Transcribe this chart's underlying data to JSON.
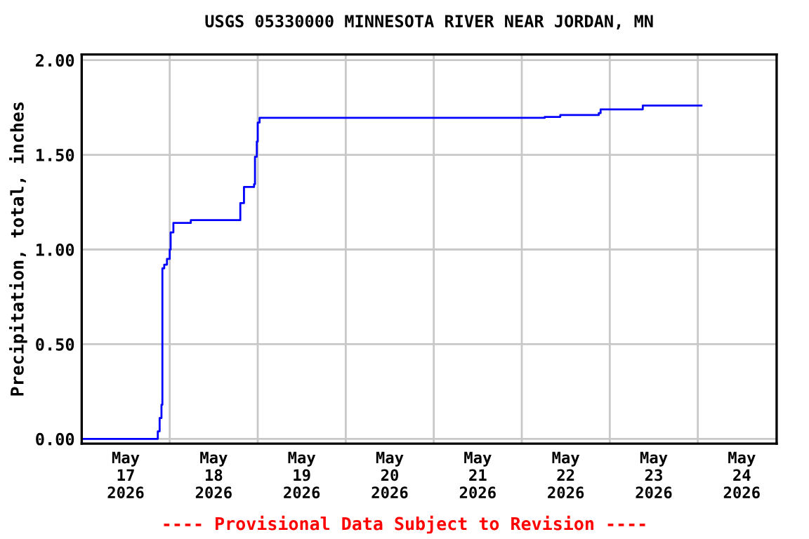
{
  "chart_data": {
    "type": "step",
    "title": "USGS 05330000 MINNESOTA RIVER NEAR JORDAN, MN",
    "ylabel": "Precipitation, total, inches",
    "annotations": [
      "---- Provisional Data Subject to Revision ----"
    ],
    "series": [
      {
        "color": "#0000ff",
        "x": [
          "2026-05-17T00:00",
          "2026-05-17T20:45",
          "2026-05-17T21:15",
          "2026-05-17T21:45",
          "2026-05-17T22:00",
          "2026-05-17T22:30",
          "2026-05-17T23:15",
          "2026-05-18T00:00",
          "2026-05-18T00:15",
          "2026-05-18T01:00",
          "2026-05-18T05:45",
          "2026-05-18T19:15",
          "2026-05-18T20:15",
          "2026-05-18T23:00",
          "2026-05-18T23:15",
          "2026-05-18T23:45",
          "2026-05-19T00:00",
          "2026-05-19T00:30",
          "2026-05-22T06:15",
          "2026-05-22T10:30",
          "2026-05-22T21:00",
          "2026-05-22T21:30",
          "2026-05-23T09:00",
          "2026-05-24T01:00"
        ],
        "values": [
          0.0,
          0.04,
          0.11,
          0.18,
          0.9,
          0.92,
          0.95,
          1.0,
          1.09,
          1.14,
          1.155,
          1.245,
          1.33,
          1.345,
          1.49,
          1.57,
          1.67,
          1.695,
          1.7,
          1.71,
          1.72,
          1.74,
          1.76,
          1.76
        ]
      }
    ],
    "xlim": [
      "2026-05-17T00:00",
      "2026-05-24T21:30"
    ],
    "xticks": [
      {
        "value": "2026-05-17T12:00",
        "label": "May\n17\n2026"
      },
      {
        "value": "2026-05-18T00:00",
        "label": null
      },
      {
        "value": "2026-05-18T12:00",
        "label": "May\n18\n2026"
      },
      {
        "value": "2026-05-19T00:00",
        "label": null
      },
      {
        "value": "2026-05-19T12:00",
        "label": "May\n19\n2026"
      },
      {
        "value": "2026-05-20T00:00",
        "label": null
      },
      {
        "value": "2026-05-20T12:00",
        "label": "May\n20\n2026"
      },
      {
        "value": "2026-05-21T00:00",
        "label": null
      },
      {
        "value": "2026-05-21T12:00",
        "label": "May\n21\n2026"
      },
      {
        "value": "2026-05-22T00:00",
        "label": null
      },
      {
        "value": "2026-05-22T12:00",
        "label": "May\n22\n2026"
      },
      {
        "value": "2026-05-23T00:00",
        "label": null
      },
      {
        "value": "2026-05-23T12:00",
        "label": "May\n23\n2026"
      },
      {
        "value": "2026-05-24T00:00",
        "label": null
      },
      {
        "value": "2026-05-24T12:00",
        "label": "May\n24\n2026"
      }
    ],
    "ylim": [
      -0.025,
      2.03
    ],
    "yticks": [
      {
        "value": 0,
        "label": "0.00"
      },
      {
        "value": 0.5,
        "label": "0.50"
      },
      {
        "value": 1,
        "label": "1.00"
      },
      {
        "value": 1.5,
        "label": "1.50"
      },
      {
        "value": 2,
        "label": "2.00"
      }
    ],
    "grid": true
  }
}
